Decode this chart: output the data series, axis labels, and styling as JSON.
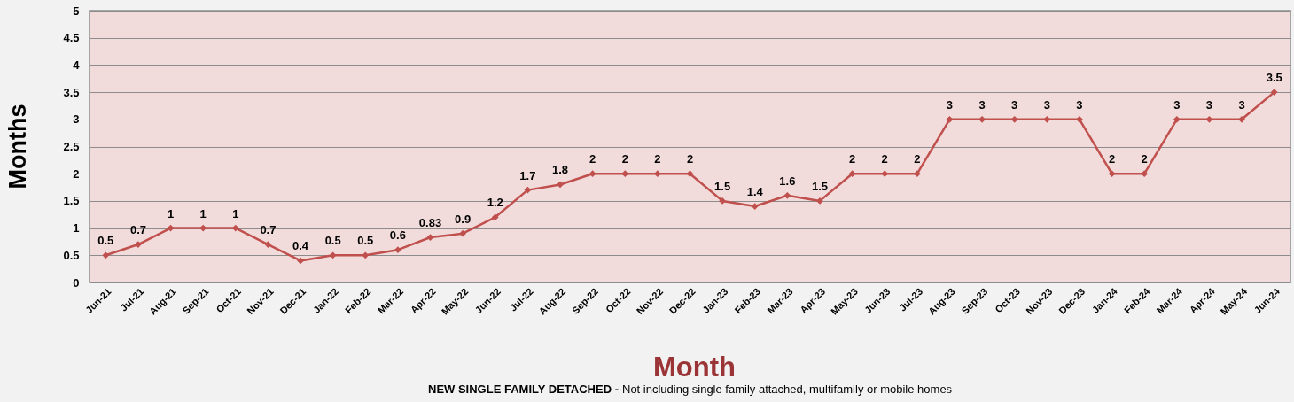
{
  "chart_data": {
    "type": "line",
    "xlabel": "Month",
    "ylabel": "Months",
    "annotations": [
      "NEW SINGLE FAMILY DETACHED -",
      "Not including single family attached, multifamily or mobile homes"
    ],
    "categories": [
      "Jun-21",
      "Jul-21",
      "Aug-21",
      "Sep-21",
      "Oct-21",
      "Nov-21",
      "Dec-21",
      "Jan-22",
      "Feb-22",
      "Mar-22",
      "Apr-22",
      "May-22",
      "Jun-22",
      "Jul-22",
      "Aug-22",
      "Sep-22",
      "Oct-22",
      "Nov-22",
      "Dec-22",
      "Jan-23",
      "Feb-23",
      "Mar-23",
      "Apr-23",
      "May-23",
      "Jun-23",
      "Jul-23",
      "Aug-23",
      "Sep-23",
      "Oct-23",
      "Nov-23",
      "Dec-23",
      "Jan-24",
      "Feb-24",
      "Mar-24",
      "Apr-24",
      "May-24",
      "Jun-24"
    ],
    "series": [
      {
        "color": "#c0504d",
        "values": [
          0.5,
          0.7,
          1,
          1,
          1,
          0.7,
          0.4,
          0.5,
          0.5,
          0.6,
          0.83,
          0.9,
          1.2,
          1.7,
          1.8,
          2,
          2,
          2,
          2,
          1.5,
          1.4,
          1.6,
          1.5,
          2,
          2,
          2,
          3,
          3,
          3,
          3,
          3,
          2,
          2,
          3,
          3,
          3,
          3.5
        ]
      }
    ],
    "ylim": [
      0,
      5
    ],
    "yticks": [
      0,
      0.5,
      1,
      1.5,
      2,
      2.5,
      3,
      3.5,
      4,
      4.5,
      5
    ],
    "grid": "y",
    "marker": "diamond",
    "line_style": "solid",
    "data_labels": true
  }
}
